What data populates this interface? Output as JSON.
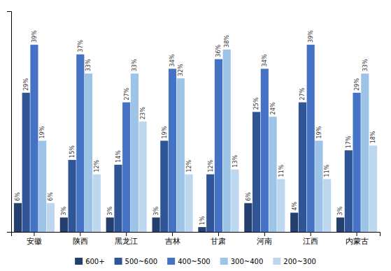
{
  "chart_data": {
    "type": "bar",
    "categories": [
      "安徽",
      "陕西",
      "黑龙江",
      "吉林",
      "甘肃",
      "河南",
      "江西",
      "内蒙古"
    ],
    "series": [
      {
        "name": "600+",
        "color": "#243f6e",
        "values": [
          6,
          3,
          3,
          3,
          1,
          6,
          4,
          3
        ],
        "value_labels": [
          "6%",
          "3%",
          "3%",
          "3%",
          "1%",
          "6%",
          "4%",
          "3%"
        ]
      },
      {
        "name": "500~600",
        "color": "#2f5597",
        "values": [
          29,
          15,
          14,
          19,
          12,
          25,
          27,
          17
        ],
        "value_labels": [
          "29%",
          "15%",
          "14%",
          "19%",
          "12%",
          "25%",
          "27%",
          "17%"
        ]
      },
      {
        "name": "400~500",
        "color": "#4472c4",
        "values": [
          39,
          37,
          27,
          34,
          36,
          34,
          39,
          29
        ],
        "value_labels": [
          "39%",
          "37%",
          "27%",
          "34%",
          "36%",
          "34%",
          "39%",
          "29%"
        ]
      },
      {
        "name": "300~400",
        "color": "#9dc3e6",
        "values": [
          19,
          33,
          33,
          32,
          38,
          24,
          19,
          33
        ],
        "value_labels": [
          "19%",
          "33%",
          "33%",
          "32%",
          "38%",
          "24%",
          "19%",
          "33%"
        ]
      },
      {
        "name": "200~300",
        "color": "#bdd7ee",
        "values": [
          6,
          12,
          23,
          12,
          13,
          11,
          11,
          18
        ],
        "value_labels": [
          "6%",
          "12%",
          "23%",
          "12%",
          "13%",
          "11%",
          "11%",
          "18%"
        ]
      }
    ],
    "ylim": [
      0,
      46
    ],
    "yticks": [],
    "grid": false,
    "data_labels": true,
    "tick_labels": "x",
    "legend": "bottom"
  }
}
